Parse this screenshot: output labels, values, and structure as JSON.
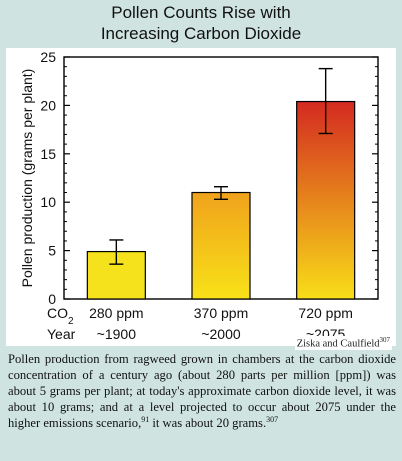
{
  "title": {
    "line1": "Pollen Counts Rise with",
    "line2": "Increasing Carbon Dioxide"
  },
  "chart_data": {
    "type": "bar",
    "ylabel": "Pollen production (grams per plant)",
    "ylim": [
      0,
      25
    ],
    "yticks": [
      0,
      5,
      10,
      15,
      20,
      25
    ],
    "categories": [
      {
        "co2": "280 ppm",
        "year": "~1900"
      },
      {
        "co2": "370 ppm",
        "year": "~2000"
      },
      {
        "co2": "720 ppm",
        "year": "~2075"
      }
    ],
    "row_labels": {
      "co2": "CO2",
      "year": "Year"
    },
    "values": [
      4.9,
      11.0,
      20.4
    ],
    "error_low": [
      3.6,
      10.3,
      17.1
    ],
    "error_high": [
      6.1,
      11.6,
      23.8
    ],
    "bar_colors": [
      {
        "top": "#f6e21c",
        "bottom": "#f6e21c"
      },
      {
        "top": "#f0a21c",
        "bottom": "#f8e218"
      },
      {
        "top": "#d42a20",
        "bottom": "#f8de18"
      }
    ],
    "grid": false
  },
  "credit": {
    "text": "Ziska and Caulfield",
    "sup": "307"
  },
  "caption": {
    "part1": "Pollen production from ragweed grown in chambers at the carbon dioxide concentration of a century ago (about 280 parts per million [ppm]) was about 5 grams per plant; at today's approximate carbon dioxide level, it was about 10 grams; and at a level projected to occur about 2075 under the higher emissions scenario,",
    "sup1": "91",
    "part2": " it was about 20 grams.",
    "sup2": "307"
  }
}
